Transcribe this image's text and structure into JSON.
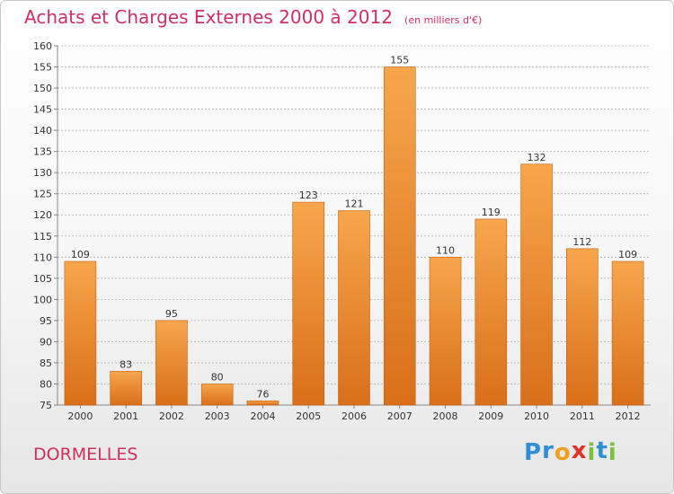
{
  "header": {
    "title": "Achats et Charges Externes 2000 à 2012",
    "subtitle": "(en milliers d'€)"
  },
  "commune": "DORMELLES",
  "logo": {
    "text": "Proxiti",
    "letter_colors": [
      "#2e8fd6",
      "#2e8fd6",
      "#f0a020",
      "#e0302a",
      "#7cc040",
      "#2e8fd6",
      "#7cc040"
    ]
  },
  "colors": {
    "bar_top": "#f7a64c",
    "bar_bottom": "#d96f1a",
    "grid": "#b0b0b0",
    "title": "#d03060"
  },
  "chart_data": {
    "type": "bar",
    "categories": [
      "2000",
      "2001",
      "2002",
      "2003",
      "2004",
      "2005",
      "2006",
      "2007",
      "2008",
      "2009",
      "2010",
      "2011",
      "2012"
    ],
    "values": [
      109,
      83,
      95,
      80,
      76,
      123,
      121,
      155,
      110,
      119,
      132,
      112,
      109
    ],
    "title": "Achats et Charges Externes 2000 à 2012",
    "subtitle": "(en milliers d'€)",
    "xlabel": "",
    "ylabel": "",
    "ylim": [
      75,
      160
    ],
    "yticks": [
      75,
      80,
      85,
      90,
      95,
      100,
      105,
      110,
      115,
      120,
      125,
      130,
      135,
      140,
      145,
      150,
      155,
      160
    ],
    "grid": true,
    "data_labels": true
  }
}
